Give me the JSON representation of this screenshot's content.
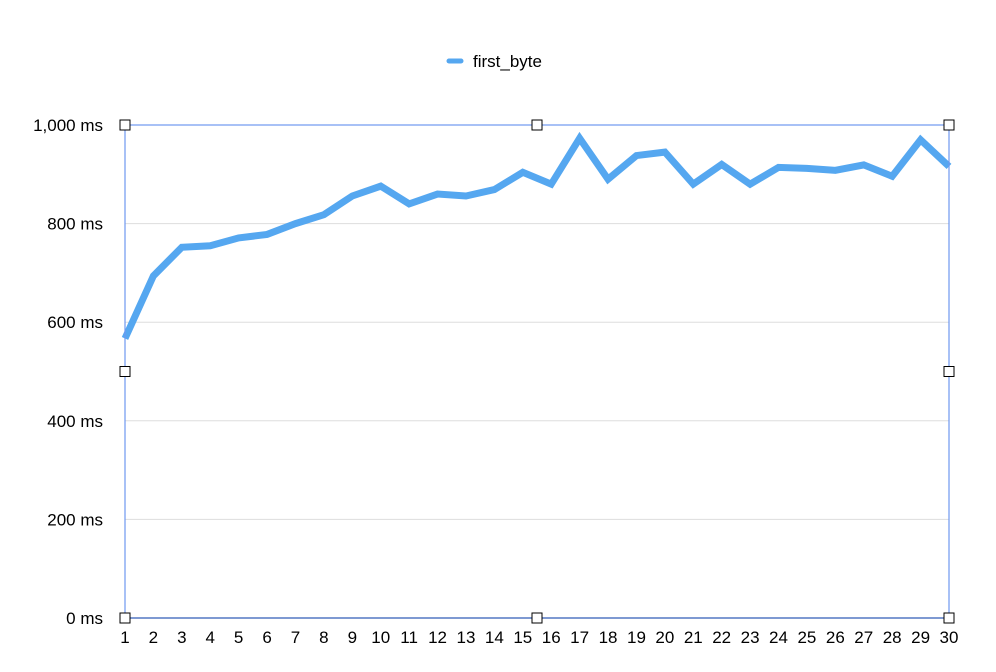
{
  "chart_data": {
    "type": "line",
    "title": "",
    "xlabel": "",
    "ylabel": "",
    "categories": [
      "1",
      "2",
      "3",
      "4",
      "5",
      "6",
      "7",
      "8",
      "9",
      "10",
      "11",
      "12",
      "13",
      "14",
      "15",
      "16",
      "17",
      "18",
      "19",
      "20",
      "21",
      "22",
      "23",
      "24",
      "25",
      "26",
      "27",
      "28",
      "29",
      "30"
    ],
    "series": [
      {
        "name": "first_byte",
        "values": [
          567,
          694,
          752,
          755,
          771,
          778,
          800,
          818,
          856,
          876,
          840,
          860,
          856,
          869,
          904,
          880,
          973,
          890,
          938,
          945,
          880,
          920,
          880,
          914,
          912,
          908,
          919,
          896,
          970,
          916
        ]
      }
    ],
    "ylim": [
      0,
      1000
    ],
    "y_ticks": [
      0,
      200,
      400,
      600,
      800,
      1000
    ],
    "y_tick_labels": [
      "0 ms",
      "200 ms",
      "400 ms",
      "600 ms",
      "800 ms",
      "1,000 ms"
    ],
    "grid": true,
    "legend": "top-center",
    "colors": {
      "series": "#55a7f0",
      "grid": "#dddddd",
      "axis": "#2b3a4a",
      "selection": "#6f98f0"
    }
  }
}
